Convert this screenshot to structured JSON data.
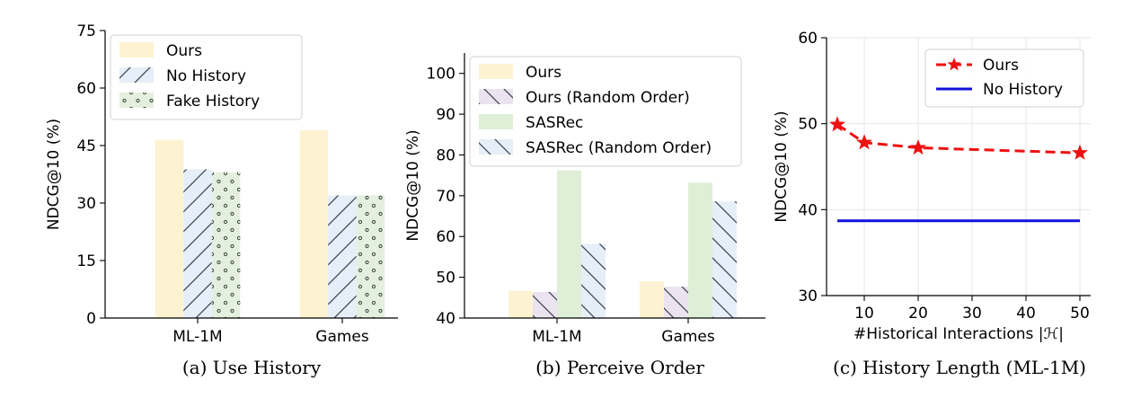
{
  "colors": {
    "ours": "#fdf2d2",
    "ours_random": "#ebe3ef",
    "no_history": "#e6eef8",
    "fake_history": "#e5efdf",
    "sasrec": "#dfeed6",
    "sasrec_random": "#e6eef8",
    "hatch": "#3a4250",
    "dots": "#3a4a3a",
    "line_ours": "#ee1111",
    "line_nohist": "#1111dd",
    "grid": "#e6e6e6"
  },
  "chart_data": [
    {
      "id": "a",
      "type": "bar",
      "caption": "(a) Use History",
      "ylabel": "NDCG@10 (%)",
      "xlabel": "",
      "ylim": [
        0,
        75
      ],
      "yticks": [
        "0",
        "15",
        "30",
        "45",
        "60",
        "75"
      ],
      "categories": [
        "ML-1M",
        "Games"
      ],
      "legend_position": "top-left",
      "series": [
        {
          "name": "Ours",
          "key": "ours",
          "pattern": "none",
          "values": [
            46.5,
            49.0
          ]
        },
        {
          "name": "No History",
          "key": "no_history",
          "pattern": "hatch-right",
          "values": [
            38.8,
            32.0
          ]
        },
        {
          "name": "Fake History",
          "key": "fake_history",
          "pattern": "dots",
          "values": [
            38.0,
            32.0
          ]
        }
      ]
    },
    {
      "id": "b",
      "type": "bar",
      "caption": "(b) Perceive Order",
      "ylabel": "NDCG@10 (%)",
      "xlabel": "",
      "ylim": [
        40,
        105
      ],
      "yticks": [
        "40",
        "50",
        "60",
        "70",
        "80",
        "90",
        "100"
      ],
      "categories": [
        "ML-1M",
        "Games"
      ],
      "legend_position": "top-left",
      "series": [
        {
          "name": "Ours",
          "key": "ours",
          "pattern": "none",
          "values": [
            46.7,
            49.0
          ]
        },
        {
          "name": "Ours (Random Order)",
          "key": "ours_random",
          "pattern": "hatch-left",
          "values": [
            46.4,
            47.7
          ]
        },
        {
          "name": "SASRec",
          "key": "sasrec",
          "pattern": "none",
          "values": [
            76.2,
            73.2
          ]
        },
        {
          "name": "SASRec (Random Order)",
          "key": "sasrec_random",
          "pattern": "hatch-left",
          "values": [
            58.2,
            68.6
          ]
        }
      ]
    },
    {
      "id": "c",
      "type": "line",
      "caption": "(c) History Length (ML-1M)",
      "ylabel": "NDCG@10 (%)",
      "xlabel": "#Historical Interactions |ℋ|",
      "xlim": [
        3,
        52
      ],
      "ylim": [
        30,
        60
      ],
      "xticks": [
        "10",
        "20",
        "30",
        "40",
        "50"
      ],
      "yticks": [
        "30",
        "40",
        "50",
        "60"
      ],
      "grid": true,
      "legend_position": "top-right",
      "series": [
        {
          "name": "Ours",
          "key": "line_ours",
          "style": "dashed-star",
          "x": [
            5,
            10,
            20,
            50
          ],
          "y": [
            49.9,
            47.8,
            47.2,
            46.6
          ]
        },
        {
          "name": "No History",
          "key": "line_nohist",
          "style": "solid",
          "x": [
            5,
            50
          ],
          "y": [
            38.7,
            38.7
          ]
        }
      ]
    }
  ]
}
